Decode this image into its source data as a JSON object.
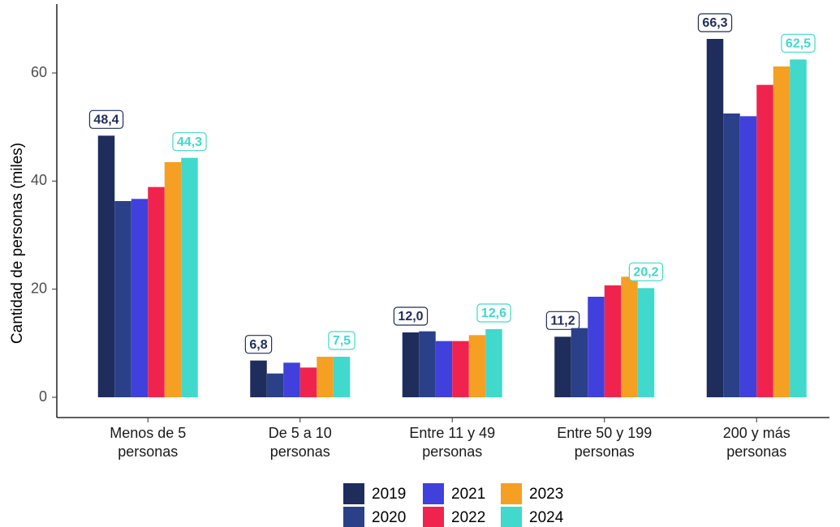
{
  "chart_data": {
    "type": "bar",
    "y_label": "Cantidad de personas (miles)",
    "categories": [
      "Menos de 5\npersonas",
      "De 5 a 10\npersonas",
      "Entre 11 y 49\npersonas",
      "Entre 50 y 199\npersonas",
      "200 y más\npersonas"
    ],
    "series": [
      {
        "name": "2019",
        "color": "#1f2d5c",
        "values": [
          48.4,
          6.8,
          12.0,
          11.2,
          66.3
        ],
        "value_labels": [
          "48,4",
          "6,8",
          "12,0",
          "11,2",
          "66,3"
        ]
      },
      {
        "name": "2020",
        "color": "#2a4088",
        "values": [
          36.3,
          4.4,
          12.2,
          12.8,
          52.5
        ]
      },
      {
        "name": "2021",
        "color": "#4040dd",
        "values": [
          36.7,
          6.4,
          10.4,
          18.6,
          52.0
        ]
      },
      {
        "name": "2022",
        "color": "#f0234f",
        "values": [
          38.9,
          5.5,
          10.4,
          20.7,
          57.8
        ]
      },
      {
        "name": "2023",
        "color": "#f5a023",
        "values": [
          43.5,
          7.5,
          11.5,
          22.3,
          61.2
        ]
      },
      {
        "name": "2024",
        "color": "#40d9cc",
        "values": [
          44.3,
          7.5,
          12.6,
          20.2,
          62.5
        ],
        "value_labels": [
          "44,3",
          "7,5",
          "12,6",
          "20,2",
          "62,5"
        ]
      }
    ],
    "ylim": [
      -3.75,
      72.75
    ],
    "yticks": [
      0,
      20,
      40,
      60
    ],
    "grid": false,
    "legend": "bottom"
  }
}
